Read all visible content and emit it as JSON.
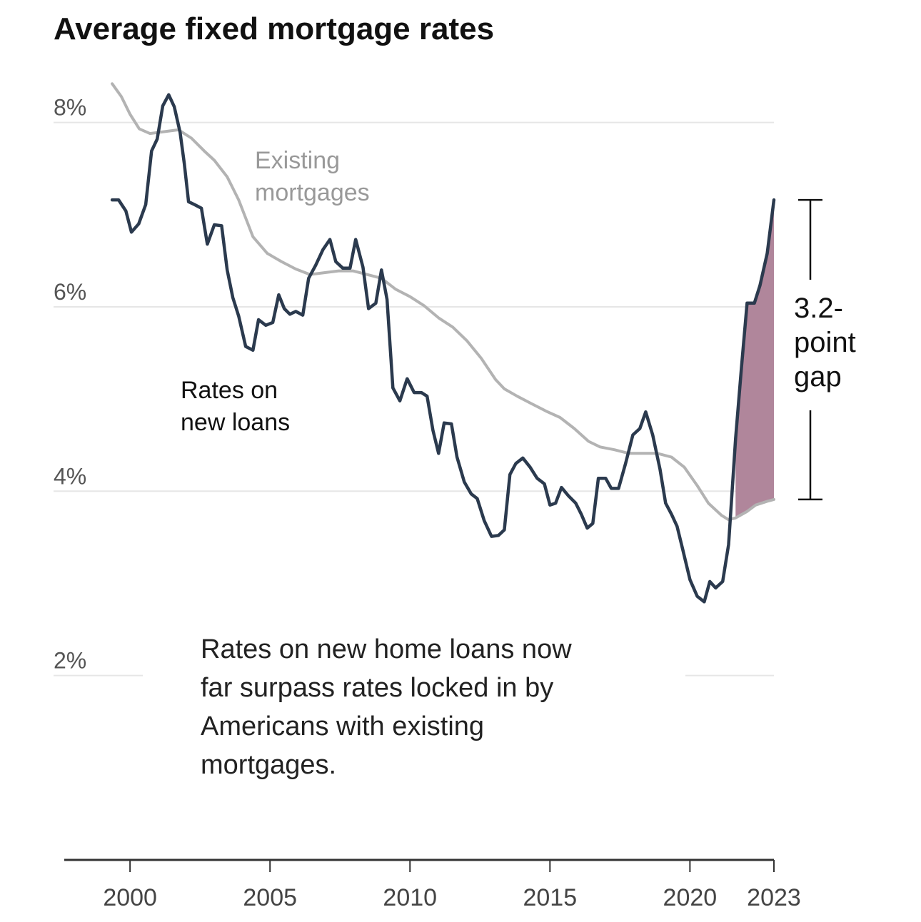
{
  "chart_data": {
    "type": "line",
    "title": "Average fixed mortgage rates",
    "xlim": [
      1997.65,
      2023
    ],
    "xticks": [
      2000,
      2005,
      2010,
      2015,
      2020,
      2023
    ],
    "ylim": [
      0,
      8.5
    ],
    "yticks": [
      {
        "value": 2,
        "label": "2%"
      },
      {
        "value": 4,
        "label": "4%"
      },
      {
        "value": 6,
        "label": "6%"
      },
      {
        "value": 8,
        "label": "8%"
      }
    ],
    "grid": true,
    "series": [
      {
        "name": "Existing mortgages",
        "label_lines": [
          "Existing",
          "mortgages"
        ],
        "color": "#b3b3b3",
        "x": [
          1999.36,
          1999.69,
          2000.0,
          2000.33,
          2000.71,
          2001.22,
          2001.73,
          2002.19,
          2002.65,
          2003.01,
          2003.47,
          2003.88,
          2004.39,
          2004.9,
          2005.41,
          2005.92,
          2006.43,
          2006.94,
          2007.45,
          2007.96,
          2008.47,
          2008.98,
          2009.49,
          2010.0,
          2010.51,
          2011.02,
          2011.53,
          2012.04,
          2012.55,
          2013.06,
          2013.37,
          2013.83,
          2014.34,
          2014.85,
          2015.36,
          2015.87,
          2016.38,
          2016.79,
          2017.3,
          2017.81,
          2018.32,
          2018.83,
          2019.34,
          2019.8,
          2020.26,
          2020.66,
          2021.12,
          2021.38,
          2021.63,
          2022.04,
          2022.35,
          2022.76,
          2023.0
        ],
        "values": [
          8.42,
          8.28,
          8.09,
          7.93,
          7.88,
          7.9,
          7.92,
          7.83,
          7.69,
          7.59,
          7.41,
          7.16,
          6.76,
          6.58,
          6.49,
          6.41,
          6.35,
          6.37,
          6.39,
          6.39,
          6.35,
          6.31,
          6.19,
          6.11,
          6.01,
          5.88,
          5.78,
          5.63,
          5.44,
          5.21,
          5.11,
          5.03,
          4.95,
          4.87,
          4.8,
          4.68,
          4.54,
          4.48,
          4.45,
          4.41,
          4.41,
          4.41,
          4.37,
          4.26,
          4.06,
          3.87,
          3.74,
          3.69,
          3.71,
          3.78,
          3.85,
          3.89,
          3.91
        ]
      },
      {
        "name": "Rates on new loans",
        "label_lines": [
          "Rates on",
          "new loans"
        ],
        "color": "#2b3a4e",
        "x": [
          1999.36,
          1999.59,
          1999.85,
          2000.05,
          2000.31,
          2000.56,
          2000.77,
          2000.97,
          2001.17,
          2001.38,
          2001.58,
          2001.79,
          2001.94,
          2002.09,
          2002.3,
          2002.55,
          2002.76,
          2003.01,
          2003.27,
          2003.47,
          2003.67,
          2003.88,
          2004.13,
          2004.39,
          2004.59,
          2004.85,
          2005.1,
          2005.31,
          2005.51,
          2005.71,
          2005.92,
          2006.17,
          2006.38,
          2006.63,
          2006.89,
          2007.14,
          2007.35,
          2007.6,
          2007.86,
          2008.06,
          2008.32,
          2008.52,
          2008.78,
          2008.98,
          2009.18,
          2009.39,
          2009.64,
          2009.9,
          2010.15,
          2010.41,
          2010.61,
          2010.82,
          2011.02,
          2011.22,
          2011.48,
          2011.68,
          2011.94,
          2012.19,
          2012.4,
          2012.65,
          2012.91,
          2013.16,
          2013.37,
          2013.57,
          2013.78,
          2014.03,
          2014.29,
          2014.54,
          2014.8,
          2015.0,
          2015.2,
          2015.41,
          2015.66,
          2015.92,
          2016.12,
          2016.33,
          2016.53,
          2016.73,
          2016.99,
          2017.19,
          2017.45,
          2017.7,
          2017.96,
          2018.21,
          2018.42,
          2018.67,
          2018.93,
          2019.13,
          2019.34,
          2019.54,
          2019.74,
          2020.0,
          2020.26,
          2020.51,
          2020.71,
          2020.92,
          2021.17,
          2021.38,
          2021.63,
          2021.84,
          2022.04,
          2022.3,
          2022.5,
          2022.76,
          2023.0
        ],
        "values": [
          7.16,
          7.16,
          7.04,
          6.81,
          6.9,
          7.11,
          7.69,
          7.82,
          8.18,
          8.3,
          8.17,
          7.89,
          7.55,
          7.14,
          7.11,
          7.07,
          6.68,
          6.89,
          6.88,
          6.4,
          6.1,
          5.9,
          5.57,
          5.53,
          5.86,
          5.8,
          5.83,
          6.13,
          5.98,
          5.92,
          5.95,
          5.91,
          6.31,
          6.45,
          6.62,
          6.73,
          6.49,
          6.42,
          6.42,
          6.73,
          6.43,
          5.98,
          6.04,
          6.4,
          6.08,
          5.12,
          4.98,
          5.22,
          5.07,
          5.07,
          5.03,
          4.66,
          4.41,
          4.74,
          4.73,
          4.37,
          4.1,
          3.97,
          3.92,
          3.68,
          3.51,
          3.52,
          3.58,
          4.18,
          4.3,
          4.36,
          4.26,
          4.14,
          4.08,
          3.85,
          3.87,
          4.04,
          3.95,
          3.87,
          3.75,
          3.6,
          3.65,
          4.14,
          4.14,
          4.03,
          4.03,
          4.3,
          4.61,
          4.68,
          4.86,
          4.61,
          4.24,
          3.87,
          3.75,
          3.62,
          3.37,
          3.04,
          2.86,
          2.8,
          3.02,
          2.95,
          3.02,
          3.42,
          4.57,
          5.34,
          6.04,
          6.04,
          6.23,
          6.58,
          7.16
        ]
      }
    ],
    "gap_color": "#b0869b",
    "gap_label_lines": [
      "3.2-",
      "point",
      "gap"
    ],
    "note_lines": [
      "Rates on new home loans now",
      "far surpass rates locked in by",
      "Americans with existing",
      "mortgages."
    ]
  }
}
